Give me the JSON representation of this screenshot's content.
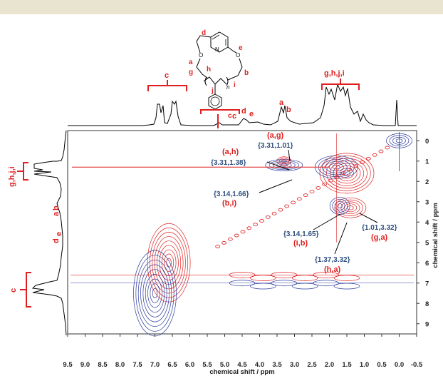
{
  "header_bar": {
    "color": "#e8e4d0"
  },
  "colors": {
    "positive": "#e02020",
    "negative": "#2a3a9a",
    "label_red": "#e02020",
    "label_blue": "#2f4f7f"
  },
  "chart_data": {
    "type": "2D NMR contour",
    "xlabel": "chemical shift / ppm",
    "ylabel": "chemical shift / ppm",
    "xlim": [
      9.5,
      -0.5
    ],
    "ylim": [
      -0.5,
      9.5
    ],
    "x_ticks": [
      "9.5",
      "9.0",
      "8.5",
      "8.0",
      "7.5",
      "7.0",
      "6.5",
      "6.0",
      "5.5",
      "5.0",
      "4.5",
      "4.0",
      "3.5",
      "3.0",
      "2.5",
      "2.0",
      "1.5",
      "1.0",
      "0.5",
      "0.0",
      "-0.5"
    ],
    "y_ticks": [
      "0",
      "1",
      "2",
      "3",
      "4",
      "5",
      "6",
      "7",
      "8",
      "9"
    ],
    "top_projection_labels": [
      "c",
      "c",
      "d",
      "e",
      "a",
      "b",
      "g,h,j,i"
    ],
    "left_projection_labels": [
      "g,h,j,i",
      "a",
      "b",
      "d",
      "e",
      "c"
    ],
    "structure_labels": [
      "d",
      "e",
      "a",
      "b",
      "g",
      "h",
      "i",
      "j",
      "n",
      "c"
    ],
    "structure_atoms": [
      "N",
      "O",
      "O"
    ],
    "cross_peaks": [
      {
        "assignment": "(a,g)",
        "coords": "{3.31,1.01}"
      },
      {
        "assignment": "(a,h)",
        "coords": "{3.31,1.38}"
      },
      {
        "assignment": "(b,i)",
        "coords": "{3.14,1.66}"
      },
      {
        "assignment": "(i,b)",
        "coords": "{3.14,1.65}"
      },
      {
        "assignment": "(h,a)",
        "coords": "{1.37,3.32}"
      },
      {
        "assignment": "(g,a)",
        "coords": "{1.01,3.32}"
      }
    ]
  }
}
